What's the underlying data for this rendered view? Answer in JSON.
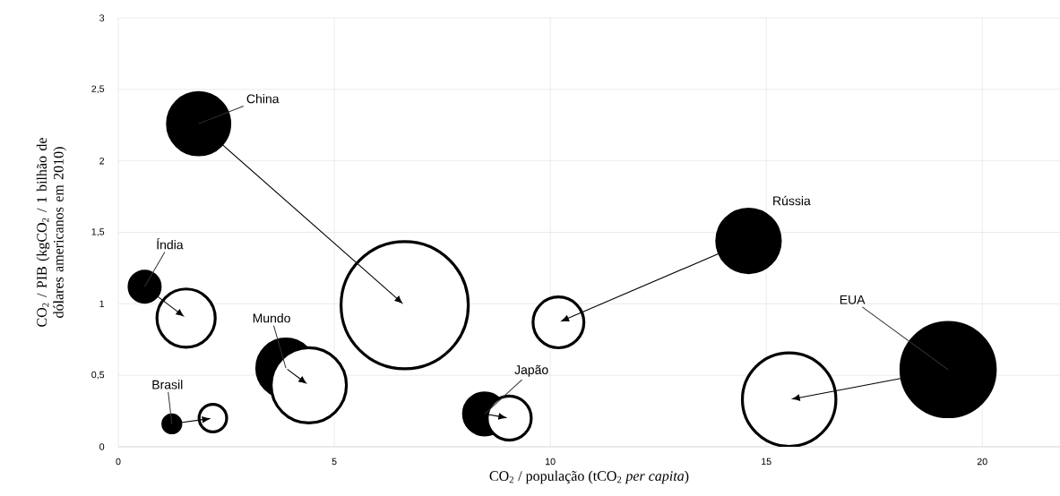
{
  "chart_data": {
    "type": "bubble",
    "grid": true,
    "xlabel": "CO$_{2}$ / população (tCO$_{2}$ *per capita*)",
    "ylabel": "CO$_{2}$ / PIB (kgCO$_{2}$ / 1 bilhão de dólares americanos em 2010)",
    "xlim": [
      0,
      21.8
    ],
    "ylim": [
      0,
      3
    ],
    "xticks": [
      0,
      5,
      10,
      15,
      20
    ],
    "yticks": [
      0,
      {
        "value": 0.5,
        "label": "0,5"
      },
      1,
      {
        "value": 1.5,
        "label": "1,5"
      },
      2,
      {
        "value": 2.5,
        "label": "2,5"
      },
      3
    ],
    "series": [
      {
        "color": "#000000",
        "x": [
          1.86,
          0.61,
          1.24,
          3.88,
          8.48,
          14.59,
          19.21
        ],
        "values": [
          2.26,
          1.12,
          0.16,
          0.55,
          0.23,
          1.44,
          0.54
        ],
        "sizes": [
          0.24,
          0.06,
          0.02,
          0.21,
          0.11,
          0.25,
          0.55
        ]
      },
      {
        "color": "#ffffff",
        "x": [
          6.63,
          1.57,
          2.19,
          4.41,
          9.05,
          10.19,
          15.53
        ],
        "values": [
          0.99,
          0.9,
          0.2,
          0.43,
          0.2,
          0.87,
          0.33
        ],
        "sizes": [
          1,
          0.21,
          0.047,
          0.35,
          0.12,
          0.16,
          0.54
        ]
      }
    ],
    "annotations": [
      {
        "text": "China",
        "x": 1.86,
        "y": 2.26
      },
      {
        "text": "Índia",
        "x": 0.61,
        "y": 1.12
      },
      {
        "text": "Brasil",
        "x": 1.24,
        "y": 0.16
      },
      {
        "text": "Mundo",
        "x": 3.88,
        "y": 0.55
      },
      {
        "text": "Japão",
        "x": 8.48,
        "y": 0.23
      },
      "Rússia",
      {
        "text": "EUA",
        "x": 19.21,
        "y": 0.54
      }
    ]
  }
}
